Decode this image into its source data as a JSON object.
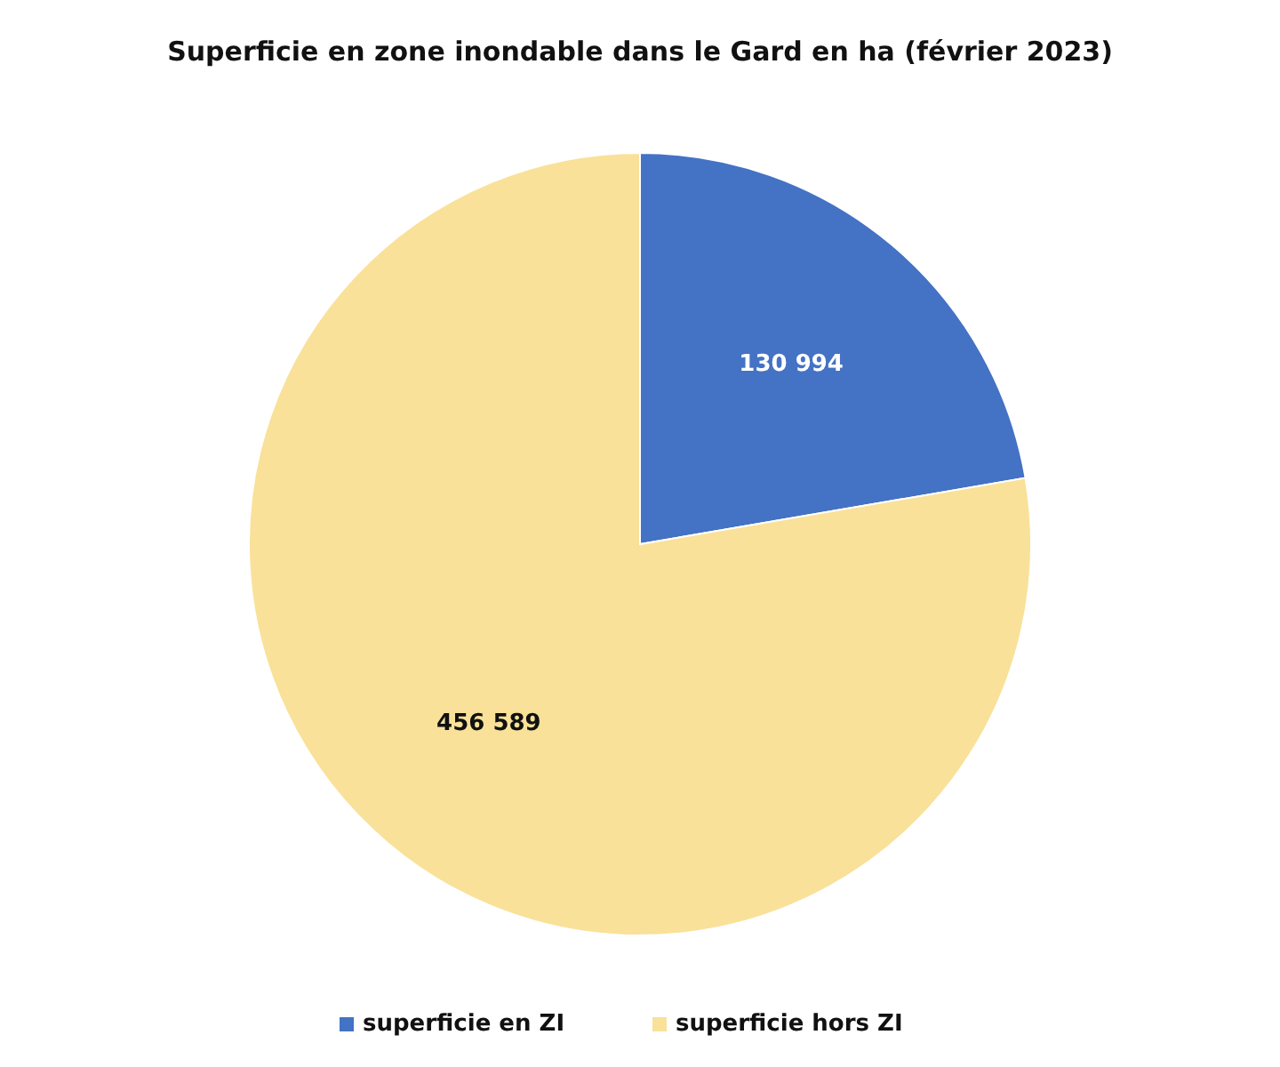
{
  "chart_data": {
    "type": "pie",
    "title": "Superficie en zone inondable dans le Gard en ha (février 2023)",
    "categories": [
      "superficie en ZI",
      "superficie hors ZI"
    ],
    "values": [
      130994,
      456589
    ],
    "colors": [
      "#4472c4",
      "#f9e199"
    ],
    "value_labels": [
      "130 994",
      "456 589"
    ],
    "legend": "bottom"
  }
}
